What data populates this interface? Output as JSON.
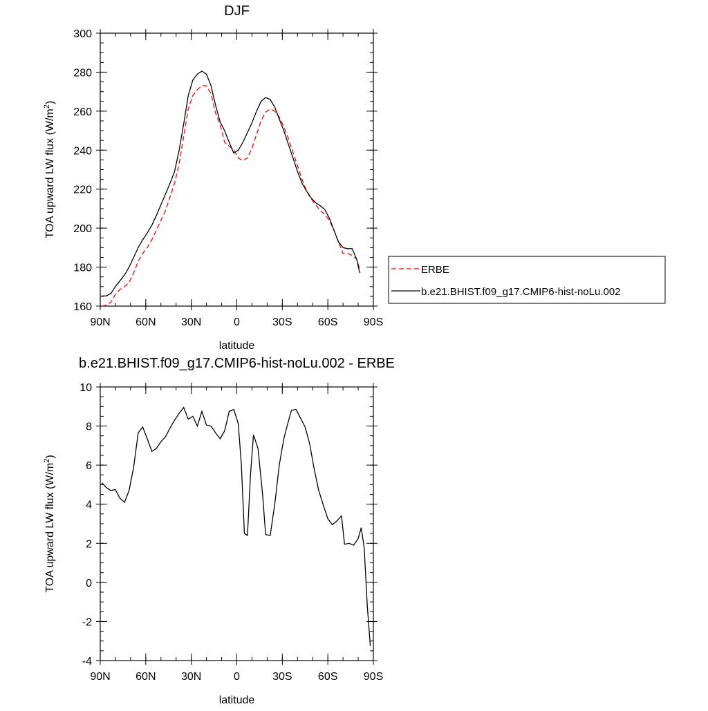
{
  "chart_data": [
    {
      "type": "line",
      "title": "DJF",
      "xlabel": "latitude",
      "ylabel": "TOA upward LW flux (W/m",
      "ylabel_superscript": "2",
      "ylabel_suffix": ")",
      "xlim": [
        90,
        -90
      ],
      "ylim": [
        160,
        300
      ],
      "x_tick_values": [
        90,
        60,
        30,
        0,
        -30,
        -60,
        -90
      ],
      "x_tick_labels": [
        "90N",
        "60N",
        "30N",
        "0",
        "30S",
        "60S",
        "90S"
      ],
      "y_ticks": [
        160,
        180,
        200,
        220,
        240,
        260,
        280,
        300
      ],
      "grid": false,
      "legend_placement": "right",
      "series": [
        {
          "name": "ERBE",
          "color": "#ff0000",
          "dash": "dashed",
          "points": [
            [
              89,
              160.0
            ],
            [
              86,
              160.5
            ],
            [
              83,
              162
            ],
            [
              80,
              166
            ],
            [
              77,
              168.5
            ],
            [
              74,
              170
            ],
            [
              71,
              172
            ],
            [
              68,
              177
            ],
            [
              65,
              183
            ],
            [
              62,
              187
            ],
            [
              59,
              190
            ],
            [
              56,
              194
            ],
            [
              53,
              199
            ],
            [
              50,
              204
            ],
            [
              47,
              209
            ],
            [
              44,
              216
            ],
            [
              41,
              223
            ],
            [
              38,
              233
            ],
            [
              35,
              247
            ],
            [
              32,
              261
            ],
            [
              29,
              268
            ],
            [
              26,
              271
            ],
            [
              23,
              273
            ],
            [
              20,
              273
            ],
            [
              17,
              269
            ],
            [
              14,
              259
            ],
            [
              11,
              253
            ],
            [
              8,
              244
            ],
            [
              5,
              242
            ],
            [
              2,
              240
            ],
            [
              -1,
              236
            ],
            [
              -4,
              234.5
            ],
            [
              -7,
              236
            ],
            [
              -10,
              241
            ],
            [
              -13,
              248
            ],
            [
              -16,
              255
            ],
            [
              -19,
              259.5
            ],
            [
              -22,
              261
            ],
            [
              -25,
              260
            ],
            [
              -28,
              257
            ],
            [
              -31,
              252
            ],
            [
              -34,
              246
            ],
            [
              -37,
              239
            ],
            [
              -40,
              232
            ],
            [
              -43,
              225
            ],
            [
              -46,
              219
            ],
            [
              -49,
              215
            ],
            [
              -52,
              212
            ],
            [
              -55,
              209
            ],
            [
              -58,
              207
            ],
            [
              -61,
              204
            ],
            [
              -64,
              199
            ],
            [
              -67,
              193
            ],
            [
              -70,
              187
            ],
            [
              -73,
              187
            ],
            [
              -76,
              186
            ],
            [
              -79,
              184
            ],
            [
              -81,
              179
            ]
          ]
        },
        {
          "name": "b.e21.BHIST.f09_g17.CMIP6-hist-noLu.002",
          "color": "#000000",
          "dash": "solid",
          "points": [
            [
              89,
              165.2
            ],
            [
              86,
              165.2
            ],
            [
              83,
              166.5
            ],
            [
              80,
              170
            ],
            [
              77,
              173
            ],
            [
              74,
              176
            ],
            [
              71,
              180
            ],
            [
              68,
              185
            ],
            [
              65,
              190
            ],
            [
              62,
              194
            ],
            [
              59,
              197.5
            ],
            [
              56,
              201.5
            ],
            [
              53,
              206.5
            ],
            [
              50,
              212
            ],
            [
              47,
              217.5
            ],
            [
              44,
              223
            ],
            [
              41,
              229
            ],
            [
              38,
              240
            ],
            [
              35,
              253.5
            ],
            [
              32,
              268
            ],
            [
              29,
              276
            ],
            [
              26,
              279
            ],
            [
              23,
              280.5
            ],
            [
              20,
              279
            ],
            [
              17,
              273
            ],
            [
              14,
              263
            ],
            [
              11,
              254.5
            ],
            [
              8,
              250
            ],
            [
              5,
              244
            ],
            [
              2,
              238.5
            ],
            [
              -1,
              240
            ],
            [
              -4,
              244
            ],
            [
              -7,
              249
            ],
            [
              -10,
              254
            ],
            [
              -13,
              260
            ],
            [
              -16,
              265
            ],
            [
              -19,
              267
            ],
            [
              -22,
              266
            ],
            [
              -25,
              262
            ],
            [
              -28,
              256
            ],
            [
              -31,
              250
            ],
            [
              -34,
              243
            ],
            [
              -37,
              236
            ],
            [
              -40,
              229
            ],
            [
              -43,
              223
            ],
            [
              -46,
              219
            ],
            [
              -49,
              215.5
            ],
            [
              -52,
              213
            ],
            [
              -55,
              211.5
            ],
            [
              -58,
              209.5
            ],
            [
              -61,
              205
            ],
            [
              -64,
              199
            ],
            [
              -67,
              193
            ],
            [
              -70,
              190
            ],
            [
              -73,
              189.5
            ],
            [
              -76,
              189.5
            ],
            [
              -79,
              184
            ],
            [
              -81,
              177
            ]
          ]
        }
      ]
    },
    {
      "type": "line",
      "title": "b.e21.BHIST.f09_g17.CMIP6-hist-noLu.002 - ERBE",
      "xlabel": "latitude",
      "ylabel": "TOA upward LW flux (W/m",
      "ylabel_superscript": "2",
      "ylabel_suffix": ")",
      "xlim": [
        90,
        -90
      ],
      "ylim": [
        -4,
        10
      ],
      "x_tick_values": [
        90,
        60,
        30,
        0,
        -30,
        -60,
        -90
      ],
      "x_tick_labels": [
        "90N",
        "60N",
        "30N",
        "0",
        "30S",
        "60S",
        "90S"
      ],
      "y_ticks": [
        -4,
        -2,
        0,
        2,
        4,
        6,
        8,
        10
      ],
      "grid": false,
      "series": [
        {
          "color": "#000000",
          "dash": "solid",
          "points": [
            [
              89,
              5.1
            ],
            [
              86,
              4.85
            ],
            [
              83,
              4.7
            ],
            [
              80,
              4.75
            ],
            [
              77,
              4.3
            ],
            [
              74,
              4.1
            ],
            [
              71,
              4.7
            ],
            [
              68,
              5.9
            ],
            [
              65,
              7.65
            ],
            [
              62,
              7.95
            ],
            [
              59,
              7.35
            ],
            [
              56,
              6.7
            ],
            [
              53,
              6.85
            ],
            [
              50,
              7.2
            ],
            [
              47,
              7.45
            ],
            [
              44,
              7.9
            ],
            [
              41,
              8.3
            ],
            [
              38,
              8.65
            ],
            [
              35,
              8.95
            ],
            [
              32,
              8.35
            ],
            [
              29,
              8.5
            ],
            [
              26,
              8.0
            ],
            [
              23,
              8.75
            ],
            [
              20,
              8.05
            ],
            [
              17,
              8.0
            ],
            [
              14,
              7.65
            ],
            [
              11,
              7.35
            ],
            [
              8,
              7.75
            ],
            [
              5,
              8.75
            ],
            [
              2,
              8.85
            ],
            [
              -1,
              8.1
            ],
            [
              -3,
              6.0
            ],
            [
              -5,
              2.5
            ],
            [
              -7,
              2.4
            ],
            [
              -9,
              5.5
            ],
            [
              -11,
              7.55
            ],
            [
              -14,
              6.85
            ],
            [
              -17,
              4.5
            ],
            [
              -19,
              2.45
            ],
            [
              -22,
              2.4
            ],
            [
              -25,
              4.0
            ],
            [
              -28,
              6.0
            ],
            [
              -31,
              7.35
            ],
            [
              -34,
              8.25
            ],
            [
              -36,
              8.8
            ],
            [
              -39,
              8.85
            ],
            [
              -42,
              8.4
            ],
            [
              -45,
              7.95
            ],
            [
              -48,
              7.1
            ],
            [
              -51,
              5.8
            ],
            [
              -54,
              4.7
            ],
            [
              -57,
              3.95
            ],
            [
              -60,
              3.25
            ],
            [
              -63,
              2.95
            ],
            [
              -66,
              3.15
            ],
            [
              -69,
              3.4
            ],
            [
              -71,
              1.95
            ],
            [
              -74,
              2.0
            ],
            [
              -77,
              1.9
            ],
            [
              -80,
              2.25
            ],
            [
              -82,
              2.8
            ],
            [
              -84,
              1.75
            ],
            [
              -86,
              -1.2
            ],
            [
              -88,
              -3.25
            ]
          ]
        }
      ]
    }
  ]
}
